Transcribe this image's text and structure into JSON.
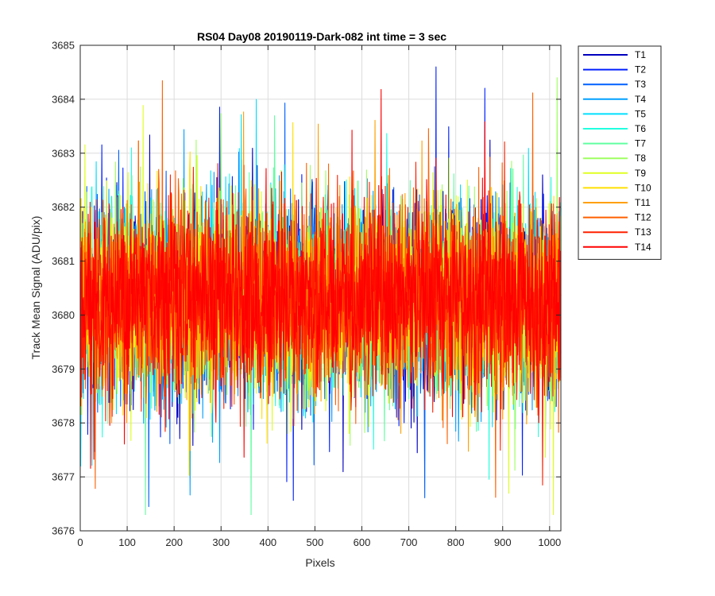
{
  "chart_data": {
    "type": "line",
    "title": "RS04 Day08 20190119-Dark-082 int time = 3 sec",
    "xlabel": "Pixels",
    "ylabel": "Track Mean Signal (ADU/pix)",
    "xlim": [
      0,
      1024
    ],
    "ylim": [
      3676,
      3685
    ],
    "x_ticks": [
      0,
      100,
      200,
      300,
      400,
      500,
      600,
      700,
      800,
      900,
      1000
    ],
    "y_ticks": [
      3676,
      3677,
      3678,
      3679,
      3680,
      3681,
      3682,
      3683,
      3684,
      3685
    ],
    "grid": true,
    "legend_position": "outside-top-right",
    "series_count": 14,
    "baseline": 3680.3,
    "noise_std": 0.9,
    "series": [
      {
        "name": "T1",
        "color": "#0000bf"
      },
      {
        "name": "T2",
        "color": "#0020ff"
      },
      {
        "name": "T3",
        "color": "#0060ff"
      },
      {
        "name": "T4",
        "color": "#00a0ff"
      },
      {
        "name": "T5",
        "color": "#00dfff"
      },
      {
        "name": "T6",
        "color": "#20ffdf"
      },
      {
        "name": "T7",
        "color": "#60ffa0"
      },
      {
        "name": "T8",
        "color": "#9fff60"
      },
      {
        "name": "T9",
        "color": "#dfff20"
      },
      {
        "name": "T10",
        "color": "#ffdf00"
      },
      {
        "name": "T11",
        "color": "#ffa000"
      },
      {
        "name": "T12",
        "color": "#ff6000"
      },
      {
        "name": "T13",
        "color": "#ff2000"
      },
      {
        "name": "T14",
        "color": "#ff0000"
      }
    ]
  }
}
